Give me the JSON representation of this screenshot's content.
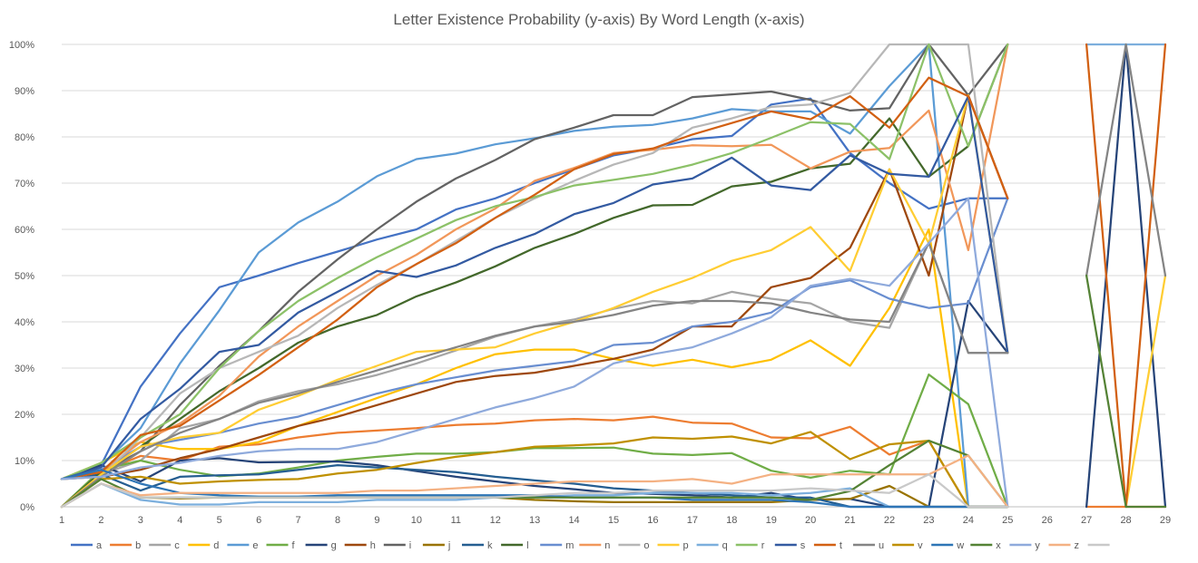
{
  "chart_data": {
    "type": "line",
    "title": "Letter Existence Probability (y-axis) By Word Length (x-axis)",
    "xlabel": "",
    "ylabel": "",
    "x": [
      1,
      2,
      3,
      4,
      5,
      6,
      7,
      8,
      9,
      10,
      11,
      12,
      13,
      14,
      15,
      16,
      17,
      18,
      19,
      20,
      21,
      22,
      23,
      24,
      25,
      26,
      27,
      28,
      29
    ],
    "x_tick_labels": [
      "1",
      "2",
      "3",
      "4",
      "5",
      "6",
      "7",
      "8",
      "9",
      "10",
      "11",
      "12",
      "13",
      "14",
      "15",
      "16",
      "17",
      "18",
      "19",
      "20",
      "21",
      "22",
      "23",
      "24",
      "25",
      "26",
      "27",
      "28",
      "29"
    ],
    "y_tick_labels": [
      "0%",
      "10%",
      "20%",
      "30%",
      "40%",
      "50%",
      "60%",
      "70%",
      "80%",
      "90%",
      "100%"
    ],
    "ylim": [
      0,
      1
    ],
    "grid": true,
    "legend_position": "bottom",
    "series": [
      {
        "name": "a",
        "color": "#4472c4",
        "values": [
          0.06,
          0.09,
          0.26,
          0.375,
          0.475,
          0.5,
          0.527,
          0.552,
          0.578,
          0.6,
          0.643,
          0.667,
          0.7,
          0.73,
          0.76,
          0.775,
          0.795,
          0.802,
          0.87,
          0.883,
          0.765,
          0.7,
          0.645,
          0.667,
          0.667,
          null,
          null,
          null,
          null
        ]
      },
      {
        "name": "b",
        "color": "#ed7d31",
        "values": [
          0.0,
          0.075,
          0.11,
          0.1,
          0.13,
          0.135,
          0.15,
          0.16,
          0.165,
          0.17,
          0.177,
          0.18,
          0.187,
          0.19,
          0.187,
          0.195,
          0.182,
          0.18,
          0.15,
          0.148,
          0.173,
          0.113,
          0.143,
          0.0,
          0.0,
          null,
          0.0,
          0.0,
          0.0
        ]
      },
      {
        "name": "c",
        "color": "#a5a5a5",
        "values": [
          0.0,
          0.07,
          0.1,
          0.17,
          0.19,
          0.228,
          0.25,
          0.265,
          0.285,
          0.31,
          0.338,
          0.368,
          0.39,
          0.405,
          0.428,
          0.445,
          0.44,
          0.465,
          0.45,
          0.44,
          0.4,
          0.387,
          0.571,
          0.333,
          0.333,
          null,
          null,
          null,
          null
        ]
      },
      {
        "name": "d",
        "color": "#ffc000",
        "values": [
          0.06,
          0.095,
          0.14,
          0.125,
          0.125,
          0.14,
          0.175,
          0.205,
          0.235,
          0.265,
          0.3,
          0.33,
          0.34,
          0.34,
          0.32,
          0.305,
          0.318,
          0.302,
          0.318,
          0.36,
          0.305,
          0.43,
          0.6,
          0.0,
          0.0,
          null,
          null,
          null,
          null
        ]
      },
      {
        "name": "e",
        "color": "#5b9bd5",
        "values": [
          0.06,
          0.09,
          0.17,
          0.31,
          0.425,
          0.55,
          0.615,
          0.66,
          0.715,
          0.752,
          0.764,
          0.784,
          0.797,
          0.813,
          0.822,
          0.826,
          0.84,
          0.86,
          0.855,
          0.855,
          0.807,
          0.91,
          1.0,
          0.0,
          0.0,
          null,
          null,
          null,
          null
        ]
      },
      {
        "name": "f",
        "color": "#70ad47",
        "values": [
          0.0,
          0.08,
          0.1,
          0.08,
          0.066,
          0.072,
          0.085,
          0.1,
          0.108,
          0.115,
          0.115,
          0.118,
          0.127,
          0.127,
          0.128,
          0.115,
          0.112,
          0.116,
          0.078,
          0.063,
          0.078,
          0.07,
          0.286,
          0.222,
          0.0,
          null,
          null,
          null,
          null
        ]
      },
      {
        "name": "g",
        "color": "#264478",
        "values": [
          0.06,
          0.09,
          0.055,
          0.1,
          0.105,
          0.096,
          0.097,
          0.098,
          0.09,
          0.077,
          0.065,
          0.055,
          0.045,
          0.038,
          0.03,
          0.028,
          0.025,
          0.02,
          0.03,
          0.015,
          0.017,
          0.0,
          0.0,
          0.445,
          0.333,
          null,
          0.0,
          1.0,
          0.0
        ]
      },
      {
        "name": "h",
        "color": "#9e480e",
        "values": [
          0.06,
          0.065,
          0.08,
          0.105,
          0.125,
          0.15,
          0.175,
          0.195,
          0.22,
          0.245,
          0.27,
          0.283,
          0.29,
          0.305,
          0.32,
          0.34,
          0.39,
          0.39,
          0.475,
          0.495,
          0.56,
          0.73,
          0.5,
          0.89,
          0.667,
          null,
          null,
          null,
          null
        ]
      },
      {
        "name": "i",
        "color": "#636363",
        "values": [
          0.06,
          0.075,
          0.12,
          0.22,
          0.305,
          0.38,
          0.465,
          0.535,
          0.6,
          0.66,
          0.71,
          0.75,
          0.795,
          0.82,
          0.847,
          0.847,
          0.886,
          0.892,
          0.898,
          0.88,
          0.857,
          0.862,
          1.0,
          0.89,
          1.0,
          null,
          null,
          null,
          null
        ]
      },
      {
        "name": "j",
        "color": "#997300",
        "values": [
          0.0,
          0.05,
          0.02,
          0.018,
          0.02,
          0.02,
          0.02,
          0.02,
          0.02,
          0.02,
          0.02,
          0.02,
          0.015,
          0.012,
          0.01,
          0.01,
          0.01,
          0.01,
          0.01,
          0.015,
          0.017,
          0.045,
          0.0,
          0.0,
          0.0,
          null,
          null,
          null,
          null
        ]
      },
      {
        "name": "k",
        "color": "#255e91",
        "values": [
          0.06,
          0.07,
          0.035,
          0.065,
          0.068,
          0.07,
          0.08,
          0.09,
          0.085,
          0.08,
          0.075,
          0.065,
          0.057,
          0.05,
          0.04,
          0.035,
          0.03,
          0.025,
          0.02,
          0.02,
          0.0,
          0.0,
          0.0,
          0.0,
          0.0,
          null,
          null,
          null,
          null
        ]
      },
      {
        "name": "l",
        "color": "#43682b",
        "values": [
          0.0,
          0.075,
          0.13,
          0.19,
          0.25,
          0.3,
          0.355,
          0.39,
          0.415,
          0.455,
          0.485,
          0.52,
          0.56,
          0.59,
          0.625,
          0.652,
          0.653,
          0.693,
          0.703,
          0.732,
          0.742,
          0.84,
          0.714,
          0.78,
          1.0,
          null,
          null,
          null,
          null
        ]
      },
      {
        "name": "m",
        "color": "#698ed0",
        "values": [
          0.06,
          0.08,
          0.13,
          0.145,
          0.16,
          0.18,
          0.195,
          0.22,
          0.245,
          0.265,
          0.28,
          0.295,
          0.305,
          0.315,
          0.35,
          0.355,
          0.39,
          0.4,
          0.42,
          0.475,
          0.49,
          0.45,
          0.43,
          0.44,
          0.667,
          null,
          null,
          null,
          null
        ]
      },
      {
        "name": "n",
        "color": "#f1975a",
        "values": [
          0.06,
          0.075,
          0.14,
          0.18,
          0.24,
          0.325,
          0.39,
          0.445,
          0.5,
          0.545,
          0.6,
          0.645,
          0.705,
          0.733,
          0.765,
          0.772,
          0.782,
          0.78,
          0.783,
          0.732,
          0.768,
          0.776,
          0.857,
          0.555,
          1.0,
          null,
          null,
          null,
          null
        ]
      },
      {
        "name": "o",
        "color": "#b7b7b7",
        "values": [
          0.06,
          0.065,
          0.15,
          0.245,
          0.3,
          0.335,
          0.37,
          0.43,
          0.48,
          0.525,
          0.575,
          0.625,
          0.667,
          0.705,
          0.74,
          0.765,
          0.82,
          0.84,
          0.865,
          0.87,
          0.895,
          1.0,
          1.0,
          1.0,
          0.333,
          null,
          null,
          null,
          null
        ]
      },
      {
        "name": "p",
        "color": "#ffcd33",
        "values": [
          0.0,
          0.07,
          0.13,
          0.15,
          0.16,
          0.21,
          0.24,
          0.275,
          0.305,
          0.335,
          0.34,
          0.345,
          0.375,
          0.4,
          0.43,
          0.465,
          0.495,
          0.532,
          0.555,
          0.605,
          0.51,
          0.73,
          0.57,
          0.89,
          0.333,
          null,
          null,
          0.0,
          0.5
        ]
      },
      {
        "name": "q",
        "color": "#7cafdd",
        "values": [
          0.0,
          0.05,
          0.015,
          0.005,
          0.005,
          0.01,
          0.01,
          0.01,
          0.015,
          0.015,
          0.015,
          0.02,
          0.02,
          0.025,
          0.025,
          0.03,
          0.03,
          0.03,
          0.025,
          0.03,
          0.04,
          0.0,
          0.0,
          0.0,
          0.0,
          null,
          1.0,
          1.0,
          1.0
        ]
      },
      {
        "name": "r",
        "color": "#8cc168",
        "values": [
          0.06,
          0.095,
          0.15,
          0.2,
          0.3,
          0.38,
          0.445,
          0.495,
          0.54,
          0.58,
          0.62,
          0.65,
          0.67,
          0.695,
          0.707,
          0.72,
          0.74,
          0.765,
          0.798,
          0.832,
          0.828,
          0.752,
          1.0,
          0.78,
          1.0,
          null,
          null,
          null,
          null
        ]
      },
      {
        "name": "s",
        "color": "#335aa1",
        "values": [
          0.06,
          0.085,
          0.19,
          0.255,
          0.335,
          0.35,
          0.42,
          0.465,
          0.51,
          0.497,
          0.522,
          0.56,
          0.59,
          0.633,
          0.657,
          0.697,
          0.71,
          0.755,
          0.695,
          0.685,
          0.76,
          0.72,
          0.714,
          0.888,
          0.333,
          null,
          null,
          null,
          null
        ]
      },
      {
        "name": "t",
        "color": "#d26012",
        "values": [
          0.06,
          0.075,
          0.155,
          0.175,
          0.23,
          0.285,
          0.345,
          0.405,
          0.475,
          0.525,
          0.57,
          0.625,
          0.675,
          0.73,
          0.763,
          0.775,
          0.805,
          0.83,
          0.855,
          0.838,
          0.888,
          0.82,
          0.928,
          0.888,
          0.667,
          null,
          1.0,
          0.0,
          1.0
        ]
      },
      {
        "name": "u",
        "color": "#848484",
        "values": [
          0.0,
          0.065,
          0.12,
          0.16,
          0.19,
          0.225,
          0.245,
          0.27,
          0.295,
          0.32,
          0.345,
          0.37,
          0.39,
          0.4,
          0.415,
          0.435,
          0.445,
          0.445,
          0.44,
          0.42,
          0.405,
          0.4,
          0.571,
          0.333,
          0.333,
          null,
          0.5,
          1.0,
          0.5
        ]
      },
      {
        "name": "v",
        "color": "#bf9000",
        "values": [
          0.0,
          0.06,
          0.065,
          0.05,
          0.055,
          0.058,
          0.06,
          0.072,
          0.08,
          0.095,
          0.108,
          0.118,
          0.13,
          0.133,
          0.137,
          0.15,
          0.147,
          0.152,
          0.137,
          0.162,
          0.103,
          0.135,
          0.143,
          0.0,
          0.0,
          null,
          null,
          null,
          null
        ]
      },
      {
        "name": "w",
        "color": "#2e75b6",
        "values": [
          0.06,
          0.08,
          0.05,
          0.03,
          0.025,
          0.022,
          0.022,
          0.025,
          0.025,
          0.025,
          0.025,
          0.025,
          0.025,
          0.02,
          0.02,
          0.02,
          0.015,
          0.015,
          0.015,
          0.01,
          0.0,
          0.0,
          0.0,
          0.0,
          0.0,
          null,
          null,
          null,
          null
        ]
      },
      {
        "name": "x",
        "color": "#548235",
        "values": [
          0.0,
          0.06,
          0.02,
          0.02,
          0.02,
          0.02,
          0.02,
          0.02,
          0.02,
          0.02,
          0.02,
          0.02,
          0.02,
          0.02,
          0.02,
          0.02,
          0.02,
          0.02,
          0.02,
          0.015,
          0.034,
          0.09,
          0.143,
          0.111,
          0.0,
          null,
          0.5,
          0.0,
          0.0
        ]
      },
      {
        "name": "y",
        "color": "#8faadc",
        "values": [
          0.06,
          0.065,
          0.085,
          0.095,
          0.11,
          0.12,
          0.125,
          0.125,
          0.14,
          0.165,
          0.19,
          0.215,
          0.235,
          0.26,
          0.31,
          0.33,
          0.345,
          0.375,
          0.41,
          0.478,
          0.493,
          0.478,
          0.57,
          0.667,
          0.0,
          null,
          null,
          null,
          null
        ]
      },
      {
        "name": "z",
        "color": "#f4b183",
        "values": [
          0.0,
          0.05,
          0.025,
          0.03,
          0.03,
          0.03,
          0.03,
          0.03,
          0.035,
          0.035,
          0.04,
          0.045,
          0.05,
          0.055,
          0.055,
          0.055,
          0.06,
          0.05,
          0.07,
          0.07,
          0.07,
          0.07,
          0.07,
          0.111,
          0.0,
          null,
          null,
          null,
          null
        ]
      },
      {
        "name": "",
        "color": "#c9c9c9",
        "values": [
          0.0,
          0.05,
          0.02,
          0.02,
          0.02,
          0.02,
          0.02,
          0.02,
          0.02,
          0.02,
          0.02,
          0.02,
          0.025,
          0.03,
          0.03,
          0.035,
          0.035,
          0.035,
          0.035,
          0.04,
          0.035,
          0.03,
          0.07,
          0.0,
          0.0,
          null,
          null,
          null,
          null
        ]
      }
    ]
  }
}
